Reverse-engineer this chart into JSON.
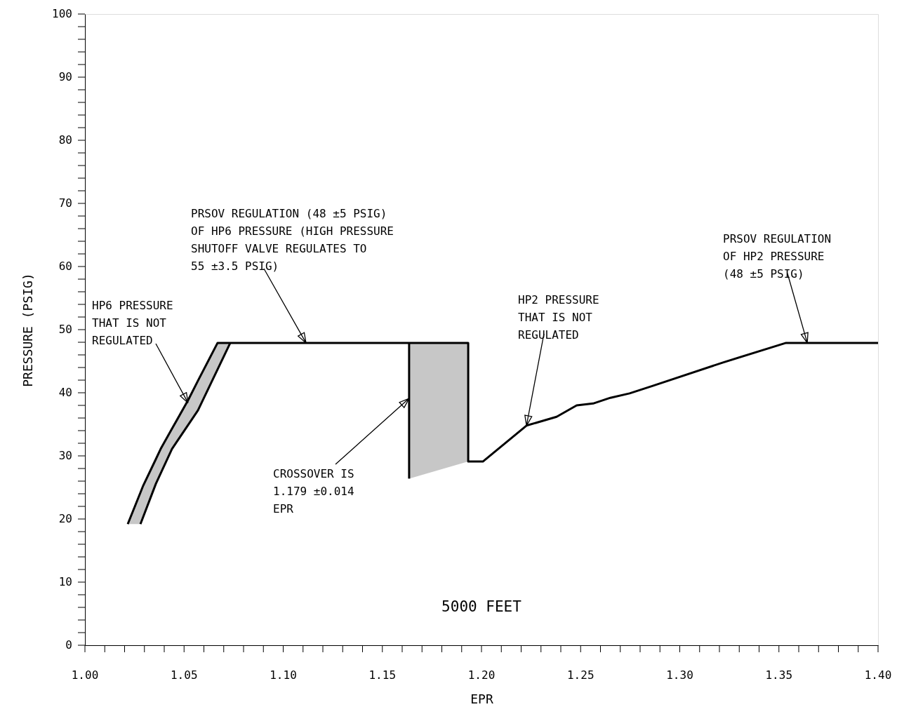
{
  "chart_data": {
    "type": "line",
    "xlabel": "EPR",
    "ylabel": "PRESSURE (PSIG)",
    "xlim": [
      1.0,
      1.4
    ],
    "ylim": [
      0,
      100
    ],
    "xticks": [
      {
        "value": 1.0,
        "label": "1.00"
      },
      {
        "value": 1.01,
        "label": null
      },
      {
        "value": 1.02,
        "label": null
      },
      {
        "value": 1.03,
        "label": null
      },
      {
        "value": 1.04,
        "label": null
      },
      {
        "value": 1.05,
        "label": "1.05"
      },
      {
        "value": 1.06,
        "label": null
      },
      {
        "value": 1.07,
        "label": null
      },
      {
        "value": 1.08,
        "label": null
      },
      {
        "value": 1.09,
        "label": null
      },
      {
        "value": 1.1,
        "label": "1.10"
      },
      {
        "value": 1.11,
        "label": null
      },
      {
        "value": 1.12,
        "label": null
      },
      {
        "value": 1.13,
        "label": null
      },
      {
        "value": 1.14,
        "label": null
      },
      {
        "value": 1.15,
        "label": "1.15"
      },
      {
        "value": 1.16,
        "label": null
      },
      {
        "value": 1.17,
        "label": null
      },
      {
        "value": 1.18,
        "label": null
      },
      {
        "value": 1.19,
        "label": null
      },
      {
        "value": 1.2,
        "label": "1.20"
      },
      {
        "value": 1.21,
        "label": null
      },
      {
        "value": 1.22,
        "label": null
      },
      {
        "value": 1.23,
        "label": null
      },
      {
        "value": 1.24,
        "label": null
      },
      {
        "value": 1.25,
        "label": "1.25"
      },
      {
        "value": 1.26,
        "label": null
      },
      {
        "value": 1.27,
        "label": null
      },
      {
        "value": 1.28,
        "label": null
      },
      {
        "value": 1.29,
        "label": null
      },
      {
        "value": 1.3,
        "label": "1.30"
      },
      {
        "value": 1.31,
        "label": null
      },
      {
        "value": 1.32,
        "label": null
      },
      {
        "value": 1.33,
        "label": null
      },
      {
        "value": 1.34,
        "label": null
      },
      {
        "value": 1.35,
        "label": "1.35"
      },
      {
        "value": 1.36,
        "label": null
      },
      {
        "value": 1.37,
        "label": null
      },
      {
        "value": 1.38,
        "label": null
      },
      {
        "value": 1.39,
        "label": null
      },
      {
        "value": 1.4,
        "label": "1.40"
      }
    ],
    "yticks": [
      0,
      {
        "value": 2,
        "label": null
      },
      {
        "value": 4,
        "label": null
      },
      {
        "value": 6,
        "label": null
      },
      {
        "value": 8,
        "label": null
      },
      10,
      {
        "value": 12,
        "label": null
      },
      {
        "value": 14,
        "label": null
      },
      {
        "value": 16,
        "label": null
      },
      {
        "value": 18,
        "label": null
      },
      20,
      {
        "value": 22,
        "label": null
      },
      {
        "value": 24,
        "label": null
      },
      {
        "value": 26,
        "label": null
      },
      {
        "value": 28,
        "label": null
      },
      30,
      {
        "value": 32,
        "label": null
      },
      {
        "value": 34,
        "label": null
      },
      {
        "value": 36,
        "label": null
      },
      {
        "value": 38,
        "label": null
      },
      40,
      {
        "value": 42,
        "label": null
      },
      {
        "value": 44,
        "label": null
      },
      {
        "value": 46,
        "label": null
      },
      {
        "value": 48,
        "label": null
      },
      50,
      {
        "value": 52,
        "label": null
      },
      {
        "value": 54,
        "label": null
      },
      {
        "value": 56,
        "label": null
      },
      {
        "value": 58,
        "label": null
      },
      60,
      {
        "value": 62,
        "label": null
      },
      {
        "value": 64,
        "label": null
      },
      {
        "value": 66,
        "label": null
      },
      {
        "value": 68,
        "label": null
      },
      70,
      {
        "value": 72,
        "label": null
      },
      {
        "value": 74,
        "label": null
      },
      {
        "value": 76,
        "label": null
      },
      {
        "value": 78,
        "label": null
      },
      80,
      {
        "value": 82,
        "label": null
      },
      {
        "value": 84,
        "label": null
      },
      {
        "value": 86,
        "label": null
      },
      {
        "value": 88,
        "label": null
      },
      90,
      {
        "value": 92,
        "label": null
      },
      {
        "value": 94,
        "label": null
      },
      {
        "value": 96,
        "label": null
      },
      {
        "value": 98,
        "label": null
      },
      100
    ],
    "grid": false,
    "marker": "none",
    "line_style": "solid",
    "series": [
      {
        "type": "line",
        "color": "#000000",
        "x": [
          1.0216,
          1.028,
          1.0294,
          1.0358,
          1.0382,
          1.0439,
          1.052,
          1.057,
          1.0669,
          1.0733,
          1.1115,
          1.1635,
          1.1933,
          1.1933,
          1.2007,
          1.2227,
          1.2379,
          1.248,
          1.2563,
          1.265,
          1.2747,
          1.2864,
          1.3218,
          1.3536,
          1.4
        ],
        "values": [
          19.2,
          24.2,
          25.3,
          29.5,
          31.1,
          34.3,
          38.8,
          41.9,
          47.9,
          47.9,
          47.9,
          47.9,
          47.9,
          29.1,
          29.1,
          34.8,
          36.2,
          38.0,
          38.3,
          39.2,
          39.9,
          41.1,
          44.8,
          47.9,
          47.9
        ],
        "upper": [
          19.2,
          24.2,
          25.3,
          29.5,
          31.1,
          34.3,
          38.8,
          41.9,
          47.9,
          47.9,
          null,
          47.9,
          47.9,
          null,
          null,
          null,
          null,
          null,
          null,
          null,
          null,
          null,
          null,
          null,
          null
        ],
        "lower": [
          19.2,
          19.2,
          20.3,
          25.6,
          27.2,
          31.1,
          34.9,
          37.2,
          43.7,
          47.9,
          null,
          26.4,
          29.1,
          null,
          null,
          null,
          null,
          null,
          null,
          null,
          null,
          null,
          null,
          null,
          null
        ]
      },
      {
        "type": "line",
        "color": "#000000",
        "x": [
          1.028,
          1.0358,
          1.0439,
          1.057,
          1.0733
        ],
        "values": [
          19.2,
          25.6,
          31.1,
          37.2,
          47.9
        ]
      },
      {
        "type": "line",
        "color": "#000000",
        "x": [
          1.1635,
          1.1635
        ],
        "values": [
          47.9,
          26.4
        ]
      }
    ],
    "annotations": [
      {
        "text": "HP6 PRESSURE\nTHAT IS NOT\nREGULATED",
        "x": 1.052,
        "y": 38.4
      },
      {
        "text": "PRSOV REGULATION (48 ±5 PSIG)\nOF HP6 PRESSURE (HIGH PRESSURE\nSHUTOFF VALVE REGULATES TO\n55 ±3.5 PSIG)",
        "x": 1.1115,
        "y": 47.9
      },
      {
        "text": "CROSSOVER IS\n1.179 ±0.014\nEPR",
        "x": 1.1635,
        "y": 39.1
      },
      {
        "text": "HP2 PRESSURE\nTHAT IS NOT\nREGULATED",
        "x": 1.2227,
        "y": 34.8
      },
      {
        "text": "PRSOV REGULATION\nOF HP2 PRESSURE\n(48 ±5 PSIG)",
        "x": 1.3643,
        "y": 47.9
      },
      "5000 FEET"
    ]
  }
}
